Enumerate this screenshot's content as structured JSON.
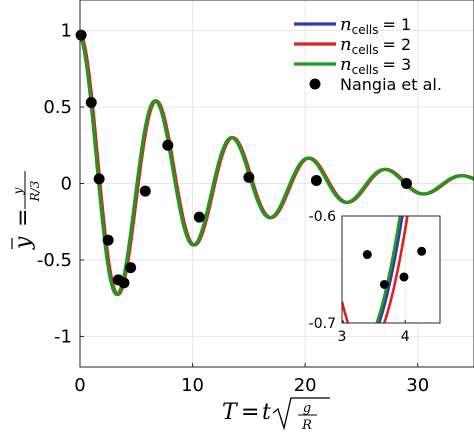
{
  "chart_data": [
    {
      "type": "line",
      "xlabel": "T = t√(g/R)",
      "ylabel": "ȳ = y/(R/3)",
      "xlim": [
        0,
        35
      ],
      "ylim": [
        -1.2,
        1.2
      ],
      "xticks": [
        0,
        10,
        20,
        30
      ],
      "yticks": [
        -1,
        -0.5,
        0,
        0.5,
        1
      ],
      "ytick_labels": [
        "-1",
        "-0.5",
        "0",
        "0.5",
        "1"
      ],
      "grid": true,
      "legend_position": "top-right",
      "series": [
        {
          "name": "ncells = 1",
          "legend_sub": "cells",
          "legend_rhs": "= 1",
          "color": "#2b3fa0",
          "line": {
            "amp": 0.97,
            "omega": 0.9239,
            "decay": 0.0867,
            "tshift": 0.0
          }
        },
        {
          "name": "ncells = 2",
          "legend_sub": "cells",
          "legend_rhs": "= 2",
          "color": "#e02020",
          "line": {
            "amp": 0.97,
            "omega": 0.9239,
            "decay": 0.0867,
            "tshift": 0.08
          }
        },
        {
          "name": "ncells = 3",
          "legend_sub": "cells",
          "legend_rhs": "= 3",
          "color": "#1f9a1f",
          "line": {
            "amp": 0.97,
            "omega": 0.9239,
            "decay": 0.0867,
            "tshift": -0.04
          }
        },
        {
          "name": "Nangia et al.",
          "legend_sub": "",
          "legend_rhs": "Nangia et al.",
          "color": "#000000",
          "points": [
            {
              "x": 0.1,
              "y": 0.97
            },
            {
              "x": 1.0,
              "y": 0.53
            },
            {
              "x": 1.7,
              "y": 0.03
            },
            {
              "x": 2.5,
              "y": -0.37
            },
            {
              "x": 3.4,
              "y": -0.63
            },
            {
              "x": 3.9,
              "y": -0.65
            },
            {
              "x": 4.5,
              "y": -0.55
            },
            {
              "x": 5.8,
              "y": -0.05
            },
            {
              "x": 7.8,
              "y": 0.25
            },
            {
              "x": 10.6,
              "y": -0.22
            },
            {
              "x": 15.0,
              "y": 0.04
            },
            {
              "x": 21.0,
              "y": 0.02
            },
            {
              "x": 29.0,
              "y": 0.0
            }
          ]
        }
      ]
    },
    {
      "type": "line",
      "role": "inset",
      "xlim": [
        3,
        4.55
      ],
      "ylim": [
        -0.7,
        -0.6
      ],
      "xticks": [
        3,
        4
      ],
      "yticks": [
        -0.7,
        -0.6
      ],
      "ytick_labels": [
        "-0.7",
        "-0.6"
      ],
      "grid": true,
      "series_colors": [
        "#2b3fa0",
        "#e02020",
        "#1f9a1f"
      ],
      "points": [
        {
          "x": 3.4,
          "y": -0.636
        },
        {
          "x": 3.67,
          "y": -0.664
        },
        {
          "x": 3.98,
          "y": -0.657
        },
        {
          "x": 4.26,
          "y": -0.633
        }
      ]
    }
  ]
}
